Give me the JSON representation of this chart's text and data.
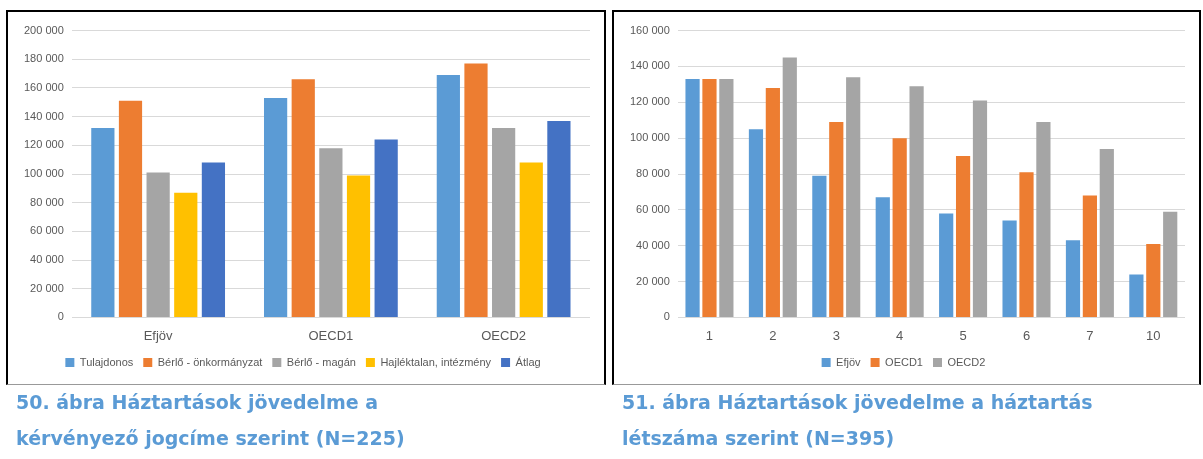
{
  "chart_data": [
    {
      "type": "bar",
      "title": "50. ábra Háztartások jövedelme a kérvényező jogcíme szerint (N=225)",
      "categories": [
        "Efjöv",
        "OECD1",
        "OECD2"
      ],
      "series": [
        {
          "name": "Tulajdonos",
          "color": "#5b9bd5",
          "values": [
            132000,
            153000,
            169000
          ]
        },
        {
          "name": "Bérlő - önkormányzat",
          "color": "#ed7d31",
          "values": [
            151000,
            166000,
            177000
          ]
        },
        {
          "name": "Bérlő - magán",
          "color": "#a5a5a5",
          "values": [
            101000,
            118000,
            132000
          ]
        },
        {
          "name": "Hajléktalan, intézmény",
          "color": "#ffc000",
          "values": [
            87000,
            99000,
            108000
          ]
        },
        {
          "name": "Átlag",
          "color": "#4472c4",
          "values": [
            108000,
            124000,
            137000
          ]
        }
      ],
      "ylim": [
        0,
        200000
      ],
      "yticks": [
        {
          "value": 0,
          "label": "0"
        },
        {
          "value": 20000,
          "label": "20 000"
        },
        {
          "value": 40000,
          "label": "40 000"
        },
        {
          "value": 60000,
          "label": "60 000"
        },
        {
          "value": 80000,
          "label": "80 000"
        },
        {
          "value": 100000,
          "label": "100 000"
        },
        {
          "value": 120000,
          "label": "120 000"
        },
        {
          "value": 140000,
          "label": "140 000"
        },
        {
          "value": 160000,
          "label": "160 000"
        },
        {
          "value": 180000,
          "label": "180 000"
        },
        {
          "value": 200000,
          "label": "200 000"
        }
      ],
      "grid": "y",
      "legend": "bottom"
    },
    {
      "type": "bar",
      "title": "51. ábra Háztartások jövedelme a háztartás létszáma szerint (N=395)",
      "categories": [
        "1",
        "2",
        "3",
        "4",
        "5",
        "6",
        "7",
        "10"
      ],
      "series": [
        {
          "name": "Efjöv",
          "color": "#5b9bd5",
          "values": [
            133000,
            105000,
            79000,
            67000,
            58000,
            54000,
            43000,
            24000
          ]
        },
        {
          "name": "OECD1",
          "color": "#ed7d31",
          "values": [
            133000,
            128000,
            109000,
            100000,
            90000,
            81000,
            68000,
            41000
          ]
        },
        {
          "name": "OECD2",
          "color": "#a5a5a5",
          "values": [
            133000,
            145000,
            134000,
            129000,
            121000,
            109000,
            94000,
            59000
          ]
        }
      ],
      "ylim": [
        0,
        160000
      ],
      "yticks": [
        {
          "value": 0,
          "label": "0"
        },
        {
          "value": 20000,
          "label": "20 000"
        },
        {
          "value": 40000,
          "label": "40 000"
        },
        {
          "value": 60000,
          "label": "60 000"
        },
        {
          "value": 80000,
          "label": "80 000"
        },
        {
          "value": 100000,
          "label": "100 000"
        },
        {
          "value": 120000,
          "label": "120 000"
        },
        {
          "value": 140000,
          "label": "140 000"
        },
        {
          "value": 160000,
          "label": "160 000"
        }
      ],
      "grid": "y",
      "legend": "bottom"
    }
  ]
}
